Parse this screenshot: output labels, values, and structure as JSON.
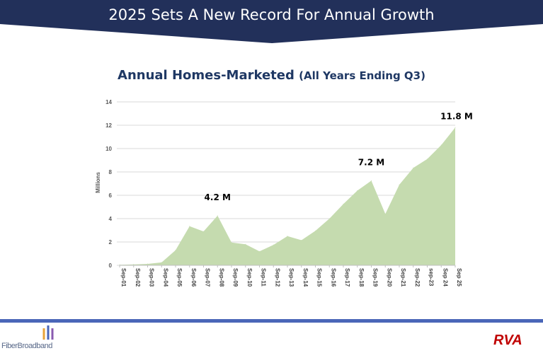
{
  "header": {
    "title": "2025 Sets A New Record For Annual Growth",
    "color": "#22305A"
  },
  "chart_data": {
    "type": "area",
    "title": "Annual Homes-Marketed",
    "subtitle": "(All Years Ending Q3)",
    "xlabel": "",
    "ylabel": "Millions",
    "ylim": [
      0,
      14
    ],
    "yticks": [
      0,
      2,
      4,
      6,
      8,
      10,
      12,
      14
    ],
    "grid": true,
    "fill_color": "#C5DBAF",
    "categories": [
      "Sep-01",
      "Sep-02",
      "Sep-03",
      "Sep-04",
      "Sep-05",
      "Sep-06",
      "Sep-07",
      "Sep-08",
      "Sep-09",
      "Sep-10",
      "Sep-11",
      "Sep-12",
      "Sep-13",
      "Sep-14",
      "Sep-15",
      "Sep-16",
      "Sep-17",
      "Sep-18",
      "Sep-19",
      "Sep-20",
      "Sep-21",
      "Sep-22",
      "sep-23",
      "Sep 24",
      "Sep 25"
    ],
    "values": [
      0.05,
      0.08,
      0.12,
      0.25,
      1.3,
      3.35,
      2.9,
      4.25,
      1.95,
      1.8,
      1.2,
      1.75,
      2.5,
      2.15,
      2.95,
      4.0,
      5.25,
      6.4,
      7.25,
      4.4,
      6.9,
      8.35,
      9.1,
      10.3,
      11.8
    ],
    "annotations": [
      {
        "index": 7,
        "text": "4.2 M"
      },
      {
        "index": 18,
        "text": "7.2 M"
      },
      {
        "index": 24,
        "text": "11.8 M"
      }
    ]
  },
  "footer": {
    "left_logo": "FiberBroadband",
    "right_logo": "RVA LLC"
  }
}
